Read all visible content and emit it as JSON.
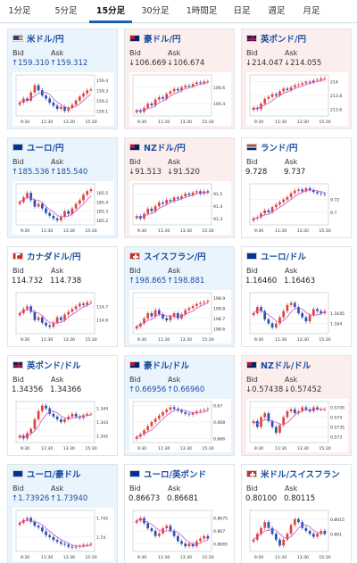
{
  "tabs": [
    {
      "label": "1分足",
      "active": false
    },
    {
      "label": "5分足",
      "active": false
    },
    {
      "label": "15分足",
      "active": true
    },
    {
      "label": "30分足",
      "active": false
    },
    {
      "label": "1時間足",
      "active": false
    },
    {
      "label": "日足",
      "active": false
    },
    {
      "label": "週足",
      "active": false
    },
    {
      "label": "月足",
      "active": false
    }
  ],
  "colors": {
    "up_candle": "#e0443f",
    "down_candle": "#2a4fb3",
    "ma_line": "#c455c8",
    "up_bg": "#eaf4fc",
    "down_bg": "#fdeeee",
    "flat_bg": "#ffffff"
  },
  "labels": {
    "bid": "Bid",
    "ask": "Ask"
  },
  "cards": [
    {
      "name": "米ドル/円",
      "flag": "us",
      "trend": "up",
      "bid": "↑159.310",
      "ask": "↑159.312",
      "x_ticks": [
        "9:30",
        "11:30",
        "13:30",
        "15:30"
      ],
      "y_ticks": [
        "159.4",
        "159.3",
        "159.2",
        "159.1"
      ],
      "y_range": [
        159.05,
        159.45
      ],
      "closes": [
        159.18,
        159.22,
        159.2,
        159.28,
        159.35,
        159.3,
        159.25,
        159.22,
        159.18,
        159.15,
        159.12,
        159.14,
        159.1,
        159.13,
        159.16,
        159.2,
        159.24,
        159.27,
        159.3,
        159.31
      ]
    },
    {
      "name": "豪ドル/円",
      "flag": "au",
      "trend": "down",
      "bid": "↓106.669",
      "ask": "↓106.674",
      "x_ticks": [
        "9:30",
        "11:30",
        "13:30",
        "15:30"
      ],
      "y_ticks": [
        "106.6",
        "106.4"
      ],
      "y_range": [
        106.25,
        106.75
      ],
      "closes": [
        106.32,
        106.3,
        106.35,
        106.4,
        106.38,
        106.45,
        106.48,
        106.46,
        106.52,
        106.55,
        106.58,
        106.56,
        106.6,
        106.62,
        106.61,
        106.64,
        106.66,
        106.65,
        106.67,
        106.67
      ]
    },
    {
      "name": "英ポンド/円",
      "flag": "uk",
      "trend": "down",
      "bid": "↓214.047",
      "ask": "↓214.055",
      "x_ticks": [
        "9:30",
        "11:30",
        "13:30",
        "15:30"
      ],
      "y_ticks": [
        "214",
        "213.8",
        "213.6"
      ],
      "y_range": [
        213.5,
        214.1
      ],
      "closes": [
        213.62,
        213.6,
        213.68,
        213.75,
        213.78,
        213.82,
        213.8,
        213.86,
        213.9,
        213.88,
        213.92,
        213.95,
        213.96,
        213.98,
        214.0,
        213.99,
        214.02,
        214.03,
        214.05,
        214.05
      ]
    },
    {
      "name": "ユーロ/円",
      "flag": "eu",
      "trend": "up",
      "bid": "↑185.536",
      "ask": "↑185.540",
      "x_ticks": [
        "9:30",
        "11:30",
        "13:30",
        "15:30"
      ],
      "y_ticks": [
        "185.5",
        "185.4",
        "185.3",
        "185.2"
      ],
      "y_range": [
        185.15,
        185.6
      ],
      "closes": [
        185.4,
        185.45,
        185.5,
        185.42,
        185.35,
        185.38,
        185.33,
        185.28,
        185.25,
        185.22,
        185.2,
        185.24,
        185.3,
        185.27,
        185.33,
        185.38,
        185.42,
        185.48,
        185.52,
        185.54
      ]
    },
    {
      "name": "NZドル/円",
      "flag": "nz",
      "trend": "down",
      "bid": "↓91.513",
      "ask": "↓91.520",
      "x_ticks": [
        "9:30",
        "11:30",
        "13:30",
        "15:30"
      ],
      "y_ticks": [
        "91.5",
        "91.4",
        "91.3"
      ],
      "y_range": [
        91.25,
        91.58
      ],
      "closes": [
        91.32,
        91.3,
        91.34,
        91.38,
        91.36,
        91.4,
        91.43,
        91.42,
        91.45,
        91.44,
        91.47,
        91.46,
        91.48,
        91.5,
        91.49,
        91.51,
        91.52,
        91.5,
        91.52,
        91.51
      ]
    },
    {
      "name": "ランド/円",
      "flag": "za",
      "trend": "flat",
      "bid": "9.728",
      "ask": "9.737",
      "x_ticks": [
        "9:30",
        "11:30",
        "13:30",
        "15:30"
      ],
      "y_ticks": [
        "9.72",
        "9.7"
      ],
      "y_range": [
        9.68,
        9.745
      ],
      "closes": [
        9.69,
        9.692,
        9.698,
        9.703,
        9.7,
        9.708,
        9.712,
        9.716,
        9.72,
        9.724,
        9.73,
        9.734,
        9.736,
        9.733,
        9.738,
        9.735,
        9.732,
        9.73,
        9.729,
        9.728
      ]
    },
    {
      "name": "カナダドル/円",
      "flag": "ca",
      "trend": "flat",
      "bid": "114.732",
      "ask": "114.738",
      "x_ticks": [
        "9:30",
        "11:30",
        "13:30",
        "15:30"
      ],
      "y_ticks": [
        "114.7",
        "114.6"
      ],
      "y_range": [
        114.5,
        114.8
      ],
      "closes": [
        114.65,
        114.68,
        114.7,
        114.66,
        114.6,
        114.62,
        114.58,
        114.56,
        114.55,
        114.58,
        114.62,
        114.6,
        114.64,
        114.66,
        114.68,
        114.7,
        114.72,
        114.71,
        114.73,
        114.73
      ]
    },
    {
      "name": "スイスフラン/円",
      "flag": "ch",
      "trend": "up",
      "bid": "↑198.865",
      "ask": "↑198.881",
      "x_ticks": [
        "9:30",
        "11:30",
        "13:30",
        "15:30"
      ],
      "y_ticks": [
        "198.9",
        "198.8",
        "198.7",
        "198.6"
      ],
      "y_range": [
        198.55,
        198.95
      ],
      "closes": [
        198.62,
        198.65,
        198.7,
        198.75,
        198.72,
        198.78,
        198.74,
        198.7,
        198.68,
        198.72,
        198.75,
        198.7,
        198.74,
        198.78,
        198.8,
        198.82,
        198.84,
        198.85,
        198.86,
        198.87
      ]
    },
    {
      "name": "ユーロ/ドル",
      "flag": "eu",
      "trend": "flat",
      "bid": "1.16460",
      "ask": "1.16463",
      "x_ticks": [
        "9:30",
        "11:30",
        "13:30",
        "15:30"
      ],
      "y_ticks": [
        "1.1645",
        "1.164"
      ],
      "y_range": [
        1.1635,
        1.1655
      ],
      "closes": [
        1.1645,
        1.1648,
        1.1646,
        1.1642,
        1.164,
        1.1638,
        1.164,
        1.1643,
        1.1646,
        1.1649,
        1.165,
        1.1648,
        1.1645,
        1.1643,
        1.1641,
        1.1644,
        1.1647,
        1.1646,
        1.1645,
        1.1646
      ]
    },
    {
      "name": "英ポンド/ドル",
      "flag": "uk",
      "trend": "flat",
      "bid": "1.34356",
      "ask": "1.34366",
      "x_ticks": [
        "9:30",
        "11:30",
        "13:30",
        "15:30"
      ],
      "y_ticks": [
        "1.344",
        "1.343",
        "1.342"
      ],
      "y_range": [
        1.3415,
        1.3445
      ],
      "closes": [
        1.342,
        1.3418,
        1.3422,
        1.3425,
        1.3432,
        1.3438,
        1.3442,
        1.344,
        1.3436,
        1.3434,
        1.3432,
        1.343,
        1.3432,
        1.3434,
        1.3436,
        1.3434,
        1.3433,
        1.3435,
        1.3436,
        1.3436
      ]
    },
    {
      "name": "豪ドル/ドル",
      "flag": "au",
      "trend": "up",
      "bid": "↑0.66956",
      "ask": "↑0.66960",
      "x_ticks": [
        "9:30",
        "11:30",
        "13:30",
        "15:30"
      ],
      "y_ticks": [
        "0.67",
        "0.668",
        "0.666"
      ],
      "y_range": [
        0.6655,
        0.6705
      ],
      "closes": [
        0.6662,
        0.6665,
        0.667,
        0.6675,
        0.668,
        0.6684,
        0.6688,
        0.6692,
        0.6695,
        0.6698,
        0.6696,
        0.6694,
        0.6692,
        0.669,
        0.6689,
        0.6691,
        0.6693,
        0.6694,
        0.6695,
        0.6696
      ]
    },
    {
      "name": "NZドル/ドル",
      "flag": "nz",
      "trend": "down",
      "bid": "↓0.57438",
      "ask": "↓0.57452",
      "x_ticks": [
        "9:30",
        "11:30",
        "13:30",
        "15:30"
      ],
      "y_ticks": [
        "0.5745",
        "0.574",
        "0.5735",
        "0.573"
      ],
      "y_range": [
        0.5727,
        0.5748
      ],
      "closes": [
        0.5738,
        0.5735,
        0.574,
        0.5742,
        0.5738,
        0.5735,
        0.5732,
        0.5736,
        0.574,
        0.5743,
        0.5744,
        0.5742,
        0.5743,
        0.5745,
        0.5744,
        0.5743,
        0.5745,
        0.5744,
        0.5744,
        0.5744
      ]
    },
    {
      "name": "ユーロ/豪ドル",
      "flag": "eu",
      "trend": "up",
      "bid": "↑1.73926",
      "ask": "↑1.73940",
      "x_ticks": [
        "9:30",
        "11:30",
        "13:30",
        "15:30"
      ],
      "y_ticks": [
        "1.742",
        "1.74"
      ],
      "y_range": [
        1.7385,
        1.7428
      ],
      "closes": [
        1.7415,
        1.7418,
        1.742,
        1.7416,
        1.7412,
        1.741,
        1.7406,
        1.7402,
        1.74,
        1.7397,
        1.7395,
        1.7393,
        1.7392,
        1.739,
        1.7389,
        1.739,
        1.7391,
        1.7392,
        1.7392,
        1.7393
      ]
    },
    {
      "name": "ユーロ/英ポンド",
      "flag": "eu",
      "trend": "flat",
      "bid": "0.86673",
      "ask": "0.86681",
      "x_ticks": [
        "9:30",
        "11:30",
        "13:30",
        "15:30"
      ],
      "y_ticks": [
        "0.8675",
        "0.867",
        "0.8665"
      ],
      "y_range": [
        0.8662,
        0.8678
      ],
      "closes": [
        0.8674,
        0.8675,
        0.8673,
        0.8671,
        0.867,
        0.8668,
        0.8669,
        0.8671,
        0.8672,
        0.867,
        0.8668,
        0.8666,
        0.8665,
        0.8664,
        0.8665,
        0.8664,
        0.8666,
        0.8667,
        0.8668,
        0.8667
      ]
    },
    {
      "name": "米ドル/スイスフラン",
      "flag": "us-ch",
      "trend": "flat",
      "bid": "0.80100",
      "ask": "0.80115",
      "x_ticks": [
        "9:30",
        "11:30",
        "13:30",
        "15:30"
      ],
      "y_ticks": [
        "0.8015",
        "0.801"
      ],
      "y_range": [
        0.8004,
        0.8018
      ],
      "closes": [
        0.8008,
        0.801,
        0.8012,
        0.8014,
        0.8012,
        0.801,
        0.8008,
        0.8006,
        0.8008,
        0.801,
        0.8013,
        0.8015,
        0.8014,
        0.8012,
        0.8011,
        0.801,
        0.8009,
        0.801,
        0.8011,
        0.801
      ]
    }
  ]
}
